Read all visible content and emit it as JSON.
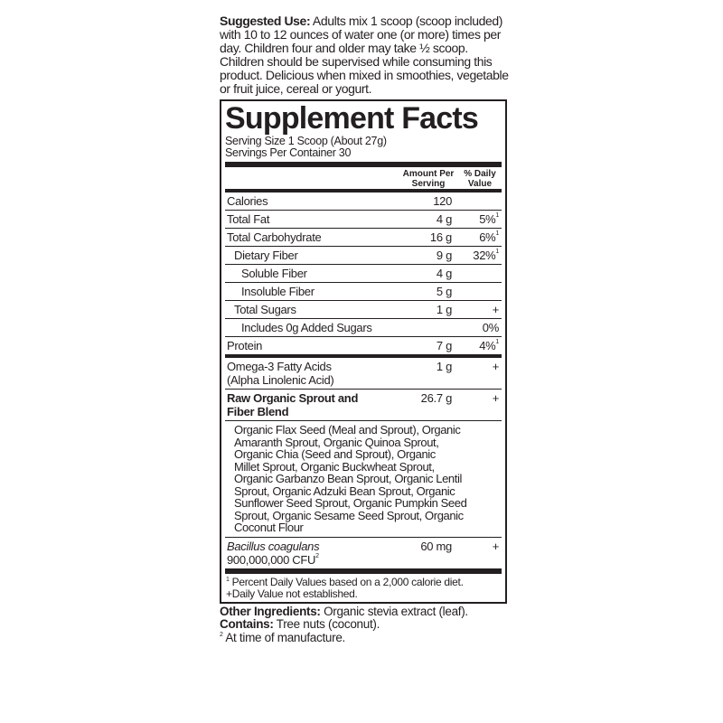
{
  "suggested_use": {
    "label": "Suggested Use:",
    "text": "Adults mix 1 scoop (scoop included) with 10 to 12 ounces of water one (or more) times per day. Children four and older may take ½ scoop. Children should be supervised while consuming this product. Delicious when mixed in smoothies, vegetable or fruit juice, cereal or yogurt."
  },
  "facts": {
    "title": "Supplement Facts",
    "serving_size": "Serving Size 1 Scoop (About 27g)",
    "servings_per_container": "Servings Per Container 30",
    "header_amount": "Amount Per Serving",
    "header_dv": "% Daily Value",
    "rows": [
      {
        "name": "Calories",
        "amount": "120",
        "dv": ""
      },
      {
        "name": "Total Fat",
        "amount": "4 g",
        "dv": "5%",
        "sup": "1"
      },
      {
        "name": "Total Carbohydrate",
        "amount": "16 g",
        "dv": "6%",
        "sup": "1"
      },
      {
        "name": "Dietary Fiber",
        "amount": "9 g",
        "dv": "32%",
        "sup": "1"
      },
      {
        "name": "Soluble Fiber",
        "amount": "4 g",
        "dv": ""
      },
      {
        "name": "Insoluble Fiber",
        "amount": "5 g",
        "dv": ""
      },
      {
        "name": "Total Sugars",
        "amount": "1 g",
        "dv": "+"
      },
      {
        "name": "Includes 0g Added Sugars",
        "amount": "",
        "dv": "0%"
      },
      {
        "name": "Protein",
        "amount": "7 g",
        "dv": "4%",
        "sup": "1"
      }
    ],
    "omega": {
      "name1": "Omega-3 Fatty Acids",
      "name2": "(Alpha Linolenic Acid)",
      "amount": "1 g",
      "dv": "+"
    },
    "blend": {
      "name1": "Raw Organic Sprout and",
      "name2": "Fiber Blend",
      "amount": "26.7 g",
      "dv": "+"
    },
    "blend_lines": [
      "Organic Flax Seed (Meal and Sprout), Organic",
      "Amaranth Sprout, Organic Quinoa Sprout,",
      "Organic Chia (Seed and Sprout), Organic",
      "Millet Sprout, Organic Buckwheat Sprout,",
      "Organic Garbanzo Bean Sprout, Organic Lentil",
      "Sprout, Organic Adzuki Bean Sprout, Organic",
      "Sunflower Seed Sprout, Organic Pumpkin Seed",
      "Sprout, Organic Sesame Seed Sprout, Organic",
      "Coconut Flour"
    ],
    "bacillus": {
      "name1": "Bacillus coagulans",
      "name2": "900,000,000 CFU",
      "sup": "2",
      "amount": "60 mg",
      "dv": "+"
    },
    "footnote1": "Percent Daily Values based on a 2,000 calorie diet.",
    "footnote1_sup": "1",
    "footnote2": "+Daily Value not established."
  },
  "other": {
    "ingredients_label": "Other Ingredients:",
    "ingredients_text": "Organic stevia extract (leaf).",
    "contains_label": "Contains:",
    "contains_text": "Tree nuts (coconut).",
    "note_sup": "2",
    "note_text": "At time of manufacture."
  }
}
